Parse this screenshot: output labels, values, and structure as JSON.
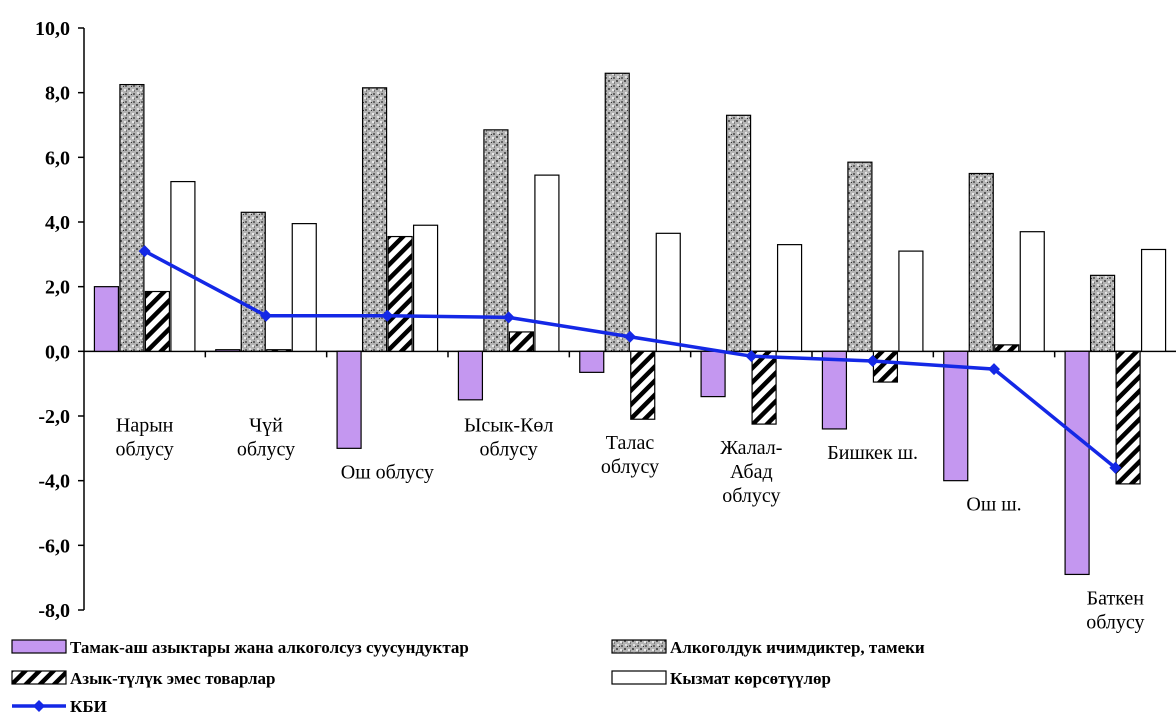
{
  "chart_data": {
    "type": "bar",
    "categories": [
      [
        "Нарын",
        "облусу"
      ],
      [
        "Чүй",
        "облусу"
      ],
      [
        "Ош облусу"
      ],
      [
        "Ысык-Көл",
        "облусу"
      ],
      [
        "Талас",
        "облусу"
      ],
      [
        "Жалал-",
        "Абад",
        "облусу"
      ],
      [
        "Бишкек ш."
      ],
      [
        "Ош ш."
      ],
      [
        "Баткен",
        "облусу"
      ]
    ],
    "series": [
      {
        "name": "Тамак-аш азыктары жана алкоголсуз суусундуктар",
        "color": "#c497f0",
        "pattern": "solid",
        "values": [
          2.0,
          0.05,
          -3.0,
          -1.5,
          -0.65,
          -1.4,
          -2.4,
          -4.0,
          -6.9
        ]
      },
      {
        "name": "Алкоголдук ичимдиктер, тамеки",
        "color": "#a0a0a0",
        "pattern": "stone",
        "values": [
          8.25,
          4.3,
          8.15,
          6.85,
          8.6,
          7.3,
          5.85,
          5.5,
          2.35
        ]
      },
      {
        "name": "Азык-түлүк эмес товарлар",
        "color": "#000000",
        "pattern": "diagonal-hatch",
        "values": [
          1.85,
          0.05,
          3.55,
          0.6,
          -2.1,
          -2.25,
          -0.95,
          0.2,
          -4.1
        ]
      },
      {
        "name": "Кызмат көрсөтүүлөр",
        "color": "#ffffff",
        "pattern": "outline",
        "values": [
          5.25,
          3.95,
          3.9,
          5.45,
          3.65,
          3.3,
          3.1,
          3.7,
          3.15
        ]
      }
    ],
    "line_series": {
      "name": "КБИ",
      "color": "#1428e6",
      "values": [
        3.1,
        1.1,
        1.1,
        1.05,
        0.45,
        -0.15,
        -0.3,
        -0.55,
        -3.6
      ]
    },
    "ylim": [
      -8.0,
      10.0
    ],
    "y_ticks": [
      "10,0",
      "8,0",
      "6,0",
      "4,0",
      "2,0",
      "0,0",
      "-2,0",
      "-4,0",
      "-6,0",
      "-8,0"
    ],
    "grid": false,
    "legend_position": "bottom"
  }
}
